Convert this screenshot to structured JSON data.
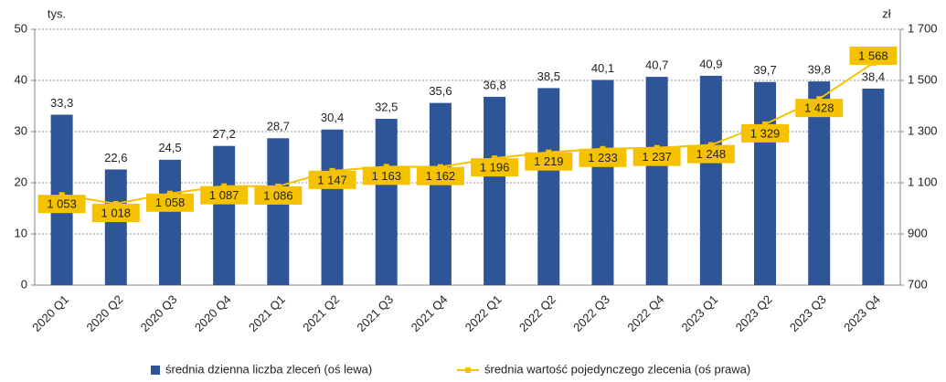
{
  "chart_data": {
    "type": "bar",
    "y_unit": "tys.",
    "y2_unit": "zł",
    "categories": [
      "2020 Q1",
      "2020 Q2",
      "2020 Q3",
      "2020 Q4",
      "2021 Q1",
      "2021 Q2",
      "2021 Q3",
      "2021 Q4",
      "2022 Q1",
      "2022 Q2",
      "2022 Q3",
      "2022 Q4",
      "2023 Q1",
      "2023 Q2",
      "2023 Q3",
      "2023 Q4"
    ],
    "series": [
      {
        "name": "średnia dzienna liczba zleceń (oś lewa)",
        "type": "bar",
        "color": "#2e5597",
        "values": [
          33.3,
          22.6,
          24.5,
          27.2,
          28.7,
          30.4,
          32.5,
          35.6,
          36.8,
          38.5,
          40.1,
          40.7,
          40.9,
          39.7,
          39.8,
          38.4
        ],
        "value_labels": [
          "33,3",
          "22,6",
          "24,5",
          "27,2",
          "28,7",
          "30,4",
          "32,5",
          "35,6",
          "36,8",
          "38,5",
          "40,1",
          "40,7",
          "40,9",
          "39,7",
          "39,8",
          "38,4"
        ]
      },
      {
        "name": "średnia wartość pojedynczego zlecenia (oś prawa)",
        "type": "line",
        "axis": "y2",
        "color": "#f5c200",
        "values": [
          1053,
          1018,
          1058,
          1087,
          1086,
          1147,
          1163,
          1162,
          1196,
          1219,
          1233,
          1237,
          1248,
          1329,
          1428,
          1568
        ],
        "value_labels": [
          "1 053",
          "1 018",
          "1 058",
          "1 087",
          "1 086",
          "1 147",
          "1 163",
          "1 162",
          "1 196",
          "1 219",
          "1 233",
          "1 237",
          "1 248",
          "1 329",
          "1 428",
          "1 568"
        ]
      }
    ],
    "ylim": [
      0,
      50
    ],
    "yticks": [
      0,
      10,
      20,
      30,
      40,
      50
    ],
    "y2lim": [
      700,
      1700
    ],
    "y2ticks": [
      700,
      900,
      {
        "value": 1100,
        "label": "1 100"
      },
      {
        "value": 1300,
        "label": "1 300"
      },
      {
        "value": 1500,
        "label": "1 500"
      },
      {
        "value": 1700,
        "label": "1 700"
      }
    ],
    "grid": true,
    "legend": "bottom"
  }
}
